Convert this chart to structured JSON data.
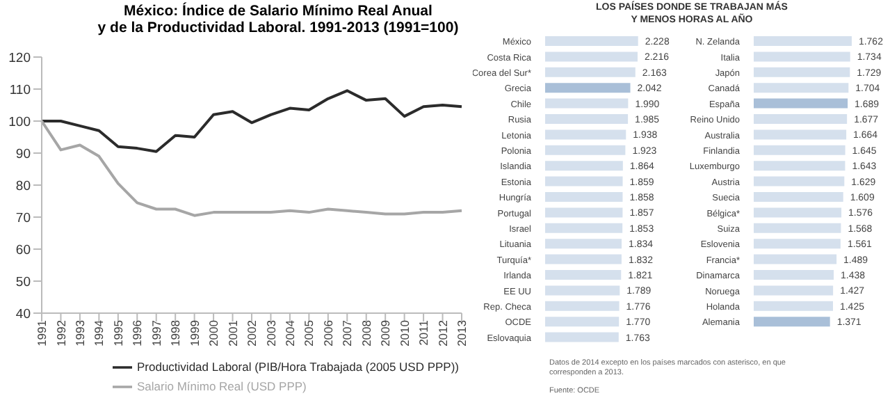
{
  "chart_data": [
    {
      "type": "line",
      "title": "México: Índice de Salario Mínimo Real Anual\ny de la Productividad Laboral. 1991-2013 (1991=100)",
      "categories": [
        "1991",
        "1992",
        "1993",
        "1994",
        "1995",
        "1996",
        "1997",
        "1998",
        "1999",
        "2000",
        "2001",
        "2002",
        "2003",
        "2004",
        "2005",
        "2006",
        "2007",
        "2008",
        "2009",
        "2010",
        "2011",
        "2012",
        "2013"
      ],
      "series": [
        {
          "name": "Productividad Laboral (PIB/Hora Trabajada (2005 USD PPP))",
          "color": "#2b2b2b",
          "values": [
            100,
            100,
            98.5,
            97,
            92,
            91.5,
            90.5,
            95.5,
            95,
            102,
            103,
            99.5,
            102,
            104,
            103.5,
            107,
            109.5,
            106.5,
            107,
            101.5,
            104.5,
            105,
            104.5
          ]
        },
        {
          "name": "Salario Mínimo Real (USD PPP)",
          "color": "#a6a6a6",
          "values": [
            100,
            91,
            92.5,
            89,
            80.5,
            74.5,
            72.5,
            72.5,
            70.5,
            71.5,
            71.5,
            71.5,
            71.5,
            72,
            71.5,
            72.5,
            72,
            71.5,
            71,
            71,
            71.5,
            71.5,
            72
          ]
        }
      ],
      "ylim": [
        40,
        120
      ],
      "yticks": [
        40,
        50,
        60,
        70,
        80,
        90,
        100,
        110,
        120
      ],
      "legend": "bottom",
      "grid": false,
      "marker": "none",
      "line_style": "solid"
    },
    {
      "type": "bar",
      "orientation": "horizontal",
      "title": "LOS PAÍSES DONDE SE TRABAJAN MÁS\nY MENOS HORAS AL AÑO",
      "annotations": [
        "Datos de 2014 excepto en los países marcados con asterisco, en que corresponden a 2013.",
        "Fuente: OCDE"
      ],
      "categories": [
        "México",
        "Costa Rica",
        "Corea del Sur*",
        "Grecia",
        "Chile",
        "Rusia",
        "Letonia",
        "Polonia",
        "Islandia",
        "Estonia",
        "Hungría",
        "Portugal",
        "Israel",
        "Lituania",
        "Turquía*",
        "Irlanda",
        "EE UU",
        "Rep. Checa",
        "OCDE",
        "Eslovaquia"
      ],
      "values": [
        2228,
        2216,
        2163,
        2042,
        1990,
        1985,
        1938,
        1923,
        1864,
        1859,
        1858,
        1857,
        1853,
        1834,
        1832,
        1821,
        1789,
        1776,
        1770,
        1763
      ],
      "value_labels": [
        "2.228",
        "2.216",
        "2.163",
        "2.042",
        "1.990",
        "1.985",
        "1.938",
        "1.923",
        "1.864",
        "1.859",
        "1.858",
        "1.857",
        "1.853",
        "1.834",
        "1.832",
        "1.821",
        "1.789",
        "1.776",
        "1.770",
        "1.763"
      ],
      "colors": [
        "#d5e0ed",
        "#d5e0ed",
        "#d5e0ed",
        "#a9bfd8",
        "#d5e0ed",
        "#d5e0ed",
        "#d5e0ed",
        "#d5e0ed",
        "#d5e0ed",
        "#d5e0ed",
        "#d5e0ed",
        "#d5e0ed",
        "#d5e0ed",
        "#d5e0ed",
        "#d5e0ed",
        "#d5e0ed",
        "#d5e0ed",
        "#d5e0ed",
        "#d5e0ed",
        "#d5e0ed"
      ],
      "tick_labels": "y",
      "grid": false
    },
    {
      "type": "bar",
      "orientation": "horizontal",
      "categories": [
        "N. Zelanda",
        "Italia",
        "Japón",
        "Canadá",
        "España",
        "Reino Unido",
        "Australia",
        "Finlandia",
        "Luxemburgo",
        "Austria",
        "Suecia",
        "Bélgica*",
        "Suiza",
        "Eslovenia",
        "Francia*",
        "Dinamarca",
        "Noruega",
        "Holanda",
        "Alemania"
      ],
      "values": [
        1762,
        1734,
        1729,
        1704,
        1689,
        1677,
        1664,
        1645,
        1643,
        1629,
        1609,
        1576,
        1568,
        1561,
        1489,
        1438,
        1427,
        1425,
        1371
      ],
      "value_labels": [
        "1.762",
        "1.734",
        "1.729",
        "1.704",
        "1.689",
        "1.677",
        "1.664",
        "1.645",
        "1.643",
        "1.629",
        "1.609",
        "1.576",
        "1.568",
        "1.561",
        "1.489",
        "1.438",
        "1.427",
        "1.425",
        "1.371"
      ],
      "colors": [
        "#d5e0ed",
        "#d5e0ed",
        "#d5e0ed",
        "#d5e0ed",
        "#a9bfd8",
        "#d5e0ed",
        "#d5e0ed",
        "#d5e0ed",
        "#d5e0ed",
        "#d5e0ed",
        "#d5e0ed",
        "#d5e0ed",
        "#d5e0ed",
        "#d5e0ed",
        "#d5e0ed",
        "#d5e0ed",
        "#d5e0ed",
        "#d5e0ed",
        "#a9bfd8"
      ],
      "tick_labels": "y",
      "grid": false
    }
  ]
}
